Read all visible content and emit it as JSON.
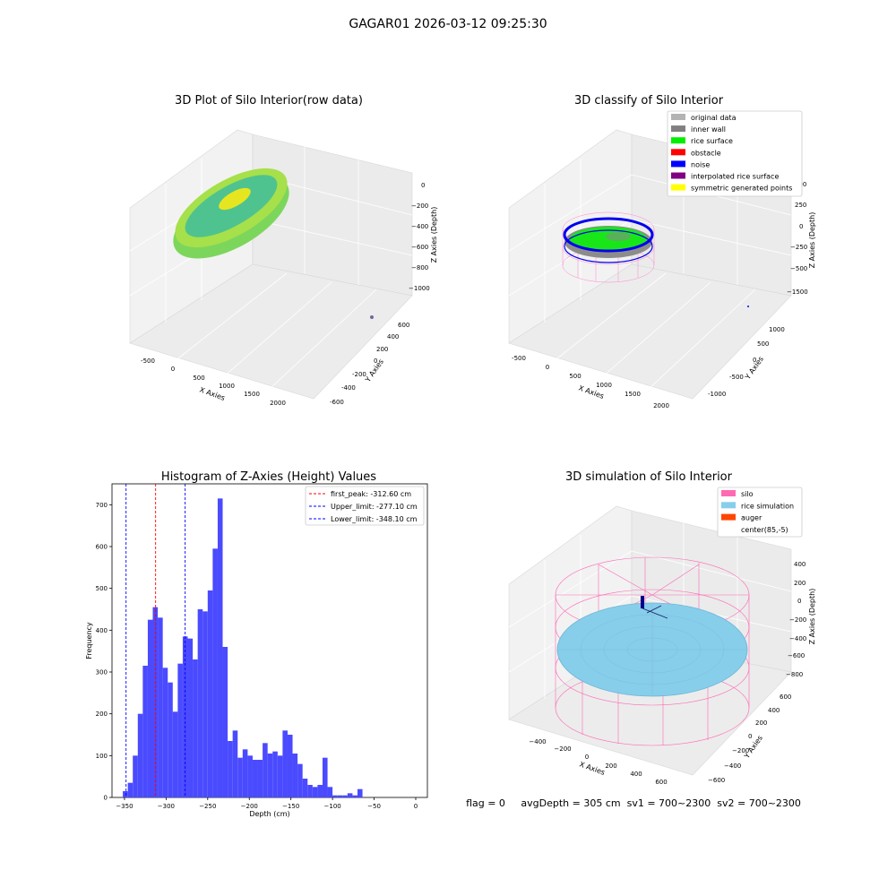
{
  "suptitle": "GAGAR01 2026-03-12 09:25:30",
  "status_line": "flag = 0     avgDepth = 305 cm  sv1 = 700~2300  sv2 = 700~2300",
  "chart_data": [
    {
      "type": "scatter3d",
      "title": "3D Plot of Silo Interior(row data)",
      "xlabel": "X Axies",
      "ylabel": "Y Axies",
      "zlabel": "Z Axies (Depth)",
      "x_ticks": [
        "-500",
        "0",
        "500",
        "1000",
        "1500",
        "2000"
      ],
      "y_ticks": [
        "-600",
        "-400",
        "-200",
        "0",
        "200",
        "400",
        "600"
      ],
      "z_ticks": [
        "0",
        "−200",
        "−400",
        "−600",
        "−800",
        "−1000"
      ],
      "colors": {
        "low": "#9ACD32",
        "high": "#E8E800",
        "mid": "#5FC98A"
      }
    },
    {
      "type": "scatter3d",
      "title": "3D classify of Silo Interior",
      "xlabel": "X Axies",
      "ylabel": "Y Axies",
      "zlabel": "Z Axies (Depth)",
      "x_ticks": [
        "-500",
        "0",
        "500",
        "1000",
        "1500",
        "2000"
      ],
      "y_ticks": [
        "-1000",
        "-500",
        "0",
        "500",
        "1000"
      ],
      "z_ticks": [
        "500",
        "250",
        "0",
        "−250",
        "−500",
        "−750",
        "−1000",
        "−1250",
        "−1500"
      ],
      "legend": [
        {
          "label": "original data",
          "color": "#b3b3b3"
        },
        {
          "label": "inner wall",
          "color": "#808080"
        },
        {
          "label": "rice surface",
          "color": "#00ee00"
        },
        {
          "label": "obstacle",
          "color": "#ff0000"
        },
        {
          "label": "noise",
          "color": "#0000ff"
        },
        {
          "label": "interpolated rice surface",
          "color": "#800080"
        },
        {
          "label": "symmetric generated points",
          "color": "#ffff00"
        }
      ],
      "legend_loc": "upper right"
    },
    {
      "type": "histogram",
      "title": "Histogram of Z-Axies (Height) Values",
      "xlabel": "Depth (cm)",
      "ylabel": "Frequency",
      "xlim": [
        -365,
        14
      ],
      "ylim": [
        0,
        750
      ],
      "bin_start": -352,
      "bin_width": 6,
      "counts": [
        15,
        35,
        100,
        200,
        315,
        425,
        455,
        430,
        310,
        275,
        205,
        320,
        385,
        380,
        330,
        450,
        445,
        495,
        595,
        715,
        360,
        135,
        160,
        95,
        115,
        100,
        90,
        90,
        130,
        105,
        110,
        100,
        160,
        150,
        105,
        80,
        45,
        30,
        25,
        30,
        95,
        25,
        5,
        5,
        5,
        10,
        5,
        20
      ],
      "x_ticks": [
        -350,
        -300,
        -250,
        -200,
        -150,
        -100,
        -50,
        0
      ],
      "x_tick_labels": [
        "−350",
        "−300",
        "−250",
        "−200",
        "−150",
        "−100",
        "−50",
        "0"
      ],
      "y_ticks": [
        0,
        100,
        200,
        300,
        400,
        500,
        600,
        700
      ],
      "y_tick_labels": [
        "0",
        "100",
        "200",
        "300",
        "400",
        "500",
        "600",
        "700"
      ],
      "bar_color": "#4a4aff",
      "vlines": [
        {
          "label": "first_peak: -312.60 cm",
          "x": -312.6,
          "color": "#ff0000"
        },
        {
          "label": "Upper_limit: -277.10 cm",
          "x": -277.1,
          "color": "#0000ff"
        },
        {
          "label": "Lower_limit: -348.10 cm",
          "x": -348.1,
          "color": "#0000ff"
        }
      ],
      "legend_loc": "upper right"
    },
    {
      "type": "surface3d",
      "title": "3D simulation of Silo Interior",
      "xlabel": "X Axies",
      "ylabel": "Y Axies",
      "zlabel": "Z Axies (Depth)",
      "x_ticks": [
        "−400",
        "−200",
        "0",
        "200",
        "400",
        "600"
      ],
      "y_ticks": [
        "−600",
        "−400",
        "−200",
        "0",
        "200",
        "400",
        "600"
      ],
      "z_ticks": [
        "400",
        "200",
        "0",
        "−200",
        "−400",
        "−600",
        "−800"
      ],
      "legend": [
        {
          "label": "silo",
          "color": "#ff69b4"
        },
        {
          "label": "rice simulation",
          "color": "#87ceeb"
        },
        {
          "label": "auger",
          "color": "#ff4500"
        },
        {
          "label": "center(85,-5)",
          "color": "#ffffff"
        }
      ],
      "legend_loc": "upper right"
    }
  ]
}
